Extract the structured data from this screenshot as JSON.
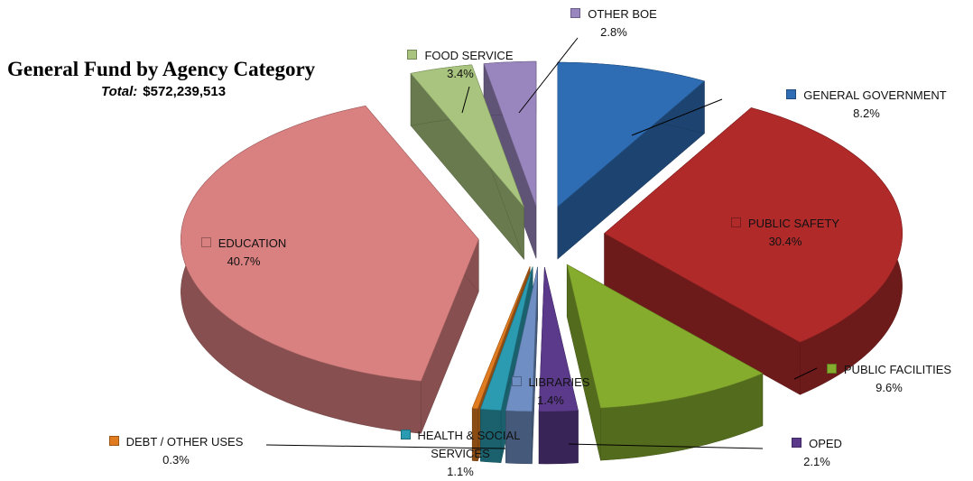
{
  "chart_data": {
    "type": "pie3d",
    "title": "General Fund by Agency Category",
    "subtitle": {
      "label": "Total:",
      "value": "$572,239,513"
    },
    "categories": [
      "GENERAL GOVERNMENT",
      "PUBLIC SAFETY",
      "PUBLIC FACILITIES",
      "OPED",
      "LIBRARIES",
      "HEALTH & SOCIAL SERVICES",
      "DEBT / OTHER USES",
      "EDUCATION",
      "FOOD SERVICE",
      "OTHER BOE"
    ],
    "values": [
      8.2,
      30.4,
      9.6,
      2.1,
      1.4,
      1.1,
      0.3,
      40.7,
      3.4,
      2.8
    ],
    "value_labels": [
      "8.2%",
      "30.4%",
      "9.6%",
      "2.1%",
      "1.4%",
      "1.1%",
      "0.3%",
      "40.7%",
      "3.4%",
      "2.8%"
    ],
    "colors": [
      "#2e6db4",
      "#b02a2a",
      "#86ac2e",
      "#5b3a8c",
      "#6f8fc4",
      "#2a9bb0",
      "#e07b20",
      "#d98080",
      "#a8c47e",
      "#9a86bf"
    ]
  }
}
